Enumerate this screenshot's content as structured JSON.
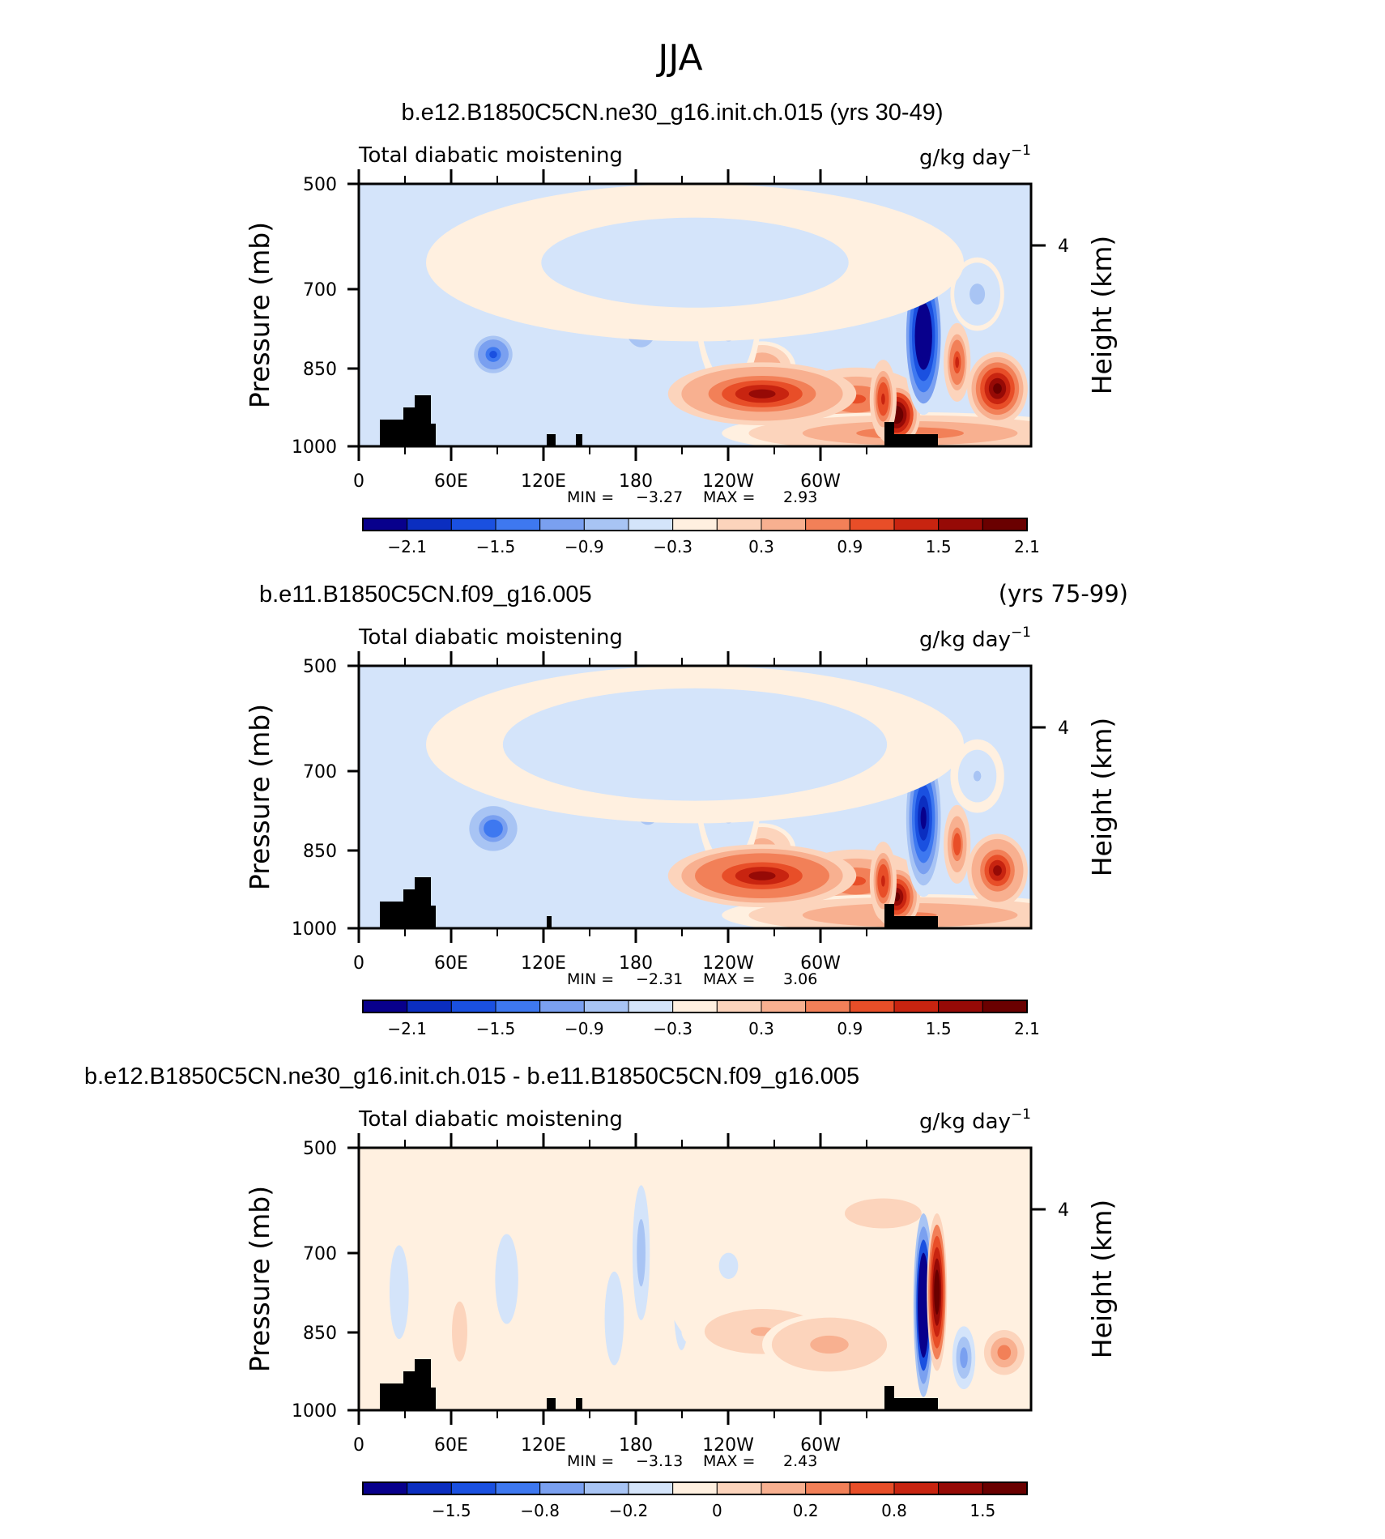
{
  "figure": {
    "main_title": "JJA"
  },
  "colors": {
    "palette": [
      "#08008c",
      "#0b2ec0",
      "#1a50e0",
      "#3e78f0",
      "#7aa0f0",
      "#a8c4f4",
      "#d4e4fa",
      "#fff0e0",
      "#fcd4bc",
      "#f8b090",
      "#f28058",
      "#e84e28",
      "#c82410",
      "#960a06",
      "#6a0000"
    ],
    "axis": "#000000",
    "land": "#000000"
  },
  "chart_data": [
    {
      "type": "heatmap",
      "panel_title": "b.e12.B1850C5CN.ne30_g16.init.ch.015 (yrs 30-49)",
      "panel_title_right": "",
      "left_label": "Total diabatic moistening",
      "units": "g/kg day",
      "units_exp": "−1",
      "ylabel": "Pressure (mb)",
      "y2label": "Height (km)",
      "y2_ticks": [
        "4"
      ],
      "yticks": [
        "500",
        "700",
        "850",
        "1000"
      ],
      "xticks": [
        "0",
        "60E",
        "120E",
        "180",
        "120W",
        "60W"
      ],
      "min_label": "MIN =",
      "min_value": "−3.27",
      "max_label": "MAX =",
      "max_value": "2.93",
      "colorbar_labels": [
        "−2.1",
        "−1.5",
        "−0.9",
        "−0.3",
        "0.3",
        "0.9",
        "1.5",
        "2.1"
      ],
      "blobs": [
        [
          0.74,
          0.82,
          0.1,
          0.12,
          1.4
        ],
        [
          0.6,
          0.7,
          0.05,
          0.1,
          1.0
        ],
        [
          0.82,
          0.95,
          0.28,
          0.08,
          1.2
        ],
        [
          0.2,
          0.65,
          0.04,
          0.1,
          -1.6
        ],
        [
          0.42,
          0.52,
          0.03,
          0.12,
          -2.0
        ],
        [
          0.55,
          0.45,
          0.05,
          0.35,
          -0.9
        ],
        [
          0.6,
          0.8,
          0.14,
          0.12,
          2.0
        ],
        [
          0.8,
          0.88,
          0.035,
          0.12,
          2.9
        ],
        [
          0.78,
          0.82,
          0.02,
          0.15,
          1.8
        ],
        [
          0.84,
          0.58,
          0.03,
          0.3,
          -3.2
        ],
        [
          0.89,
          0.68,
          0.02,
          0.15,
          1.6
        ],
        [
          0.95,
          0.78,
          0.045,
          0.14,
          2.4
        ],
        [
          0.92,
          0.42,
          0.04,
          0.14,
          -0.7
        ],
        [
          0.5,
          0.3,
          0.4,
          0.3,
          -0.4
        ]
      ]
    },
    {
      "type": "heatmap",
      "panel_title": "b.e11.B1850C5CN.f09_g16.005",
      "panel_title_right": "(yrs 75-99)",
      "left_label": "Total diabatic moistening",
      "units": "g/kg day",
      "units_exp": "−1",
      "ylabel": "Pressure (mb)",
      "y2label": "Height (km)",
      "y2_ticks": [
        "4"
      ],
      "yticks": [
        "500",
        "700",
        "850",
        "1000"
      ],
      "xticks": [
        "0",
        "60E",
        "120E",
        "180",
        "120W",
        "60W"
      ],
      "min_label": "MIN =",
      "min_value": "−2.31",
      "max_label": "MAX =",
      "max_value": "3.06",
      "colorbar_labels": [
        "−2.1",
        "−1.5",
        "−0.9",
        "−0.3",
        "0.3",
        "0.9",
        "1.5",
        "2.1"
      ],
      "blobs": [
        [
          0.74,
          0.82,
          0.1,
          0.12,
          1.3
        ],
        [
          0.6,
          0.7,
          0.05,
          0.1,
          0.9
        ],
        [
          0.82,
          0.95,
          0.28,
          0.08,
          1.0
        ],
        [
          0.2,
          0.62,
          0.05,
          0.12,
          -1.5
        ],
        [
          0.43,
          0.52,
          0.03,
          0.12,
          -1.6
        ],
        [
          0.55,
          0.45,
          0.05,
          0.35,
          -0.8
        ],
        [
          0.6,
          0.8,
          0.14,
          0.12,
          2.1
        ],
        [
          0.8,
          0.88,
          0.035,
          0.12,
          2.6
        ],
        [
          0.78,
          0.82,
          0.02,
          0.15,
          1.7
        ],
        [
          0.84,
          0.58,
          0.03,
          0.3,
          -2.3
        ],
        [
          0.89,
          0.68,
          0.02,
          0.15,
          1.5
        ],
        [
          0.95,
          0.78,
          0.045,
          0.14,
          2.0
        ],
        [
          0.92,
          0.42,
          0.04,
          0.14,
          -0.6
        ],
        [
          0.5,
          0.3,
          0.4,
          0.3,
          -0.5
        ]
      ]
    },
    {
      "type": "heatmap",
      "panel_title": "b.e12.B1850C5CN.ne30_g16.init.ch.015 - b.e11.B1850C5CN.f09_g16.005",
      "panel_title_right": "",
      "left_label": "Total diabatic moistening",
      "units": "g/kg day",
      "units_exp": "−1",
      "ylabel": "Pressure (mb)",
      "y2label": "Height (km)",
      "y2_ticks": [
        "4"
      ],
      "yticks": [
        "500",
        "700",
        "850",
        "1000"
      ],
      "xticks": [
        "0",
        "60E",
        "120E",
        "180",
        "120W",
        "60W"
      ],
      "min_label": "MIN =",
      "min_value": "−3.13",
      "max_label": "MAX =",
      "max_value": "2.43",
      "colorbar_labels": [
        "−1.5",
        "−0.8",
        "−0.2",
        "0",
        "0.2",
        "0.8",
        "1.5"
      ],
      "blobs": [
        [
          0.06,
          0.55,
          0.02,
          0.25,
          -0.4
        ],
        [
          0.15,
          0.7,
          0.02,
          0.2,
          0.3
        ],
        [
          0.22,
          0.5,
          0.03,
          0.3,
          -0.3
        ],
        [
          0.38,
          0.65,
          0.02,
          0.25,
          -0.4
        ],
        [
          0.42,
          0.4,
          0.015,
          0.3,
          -0.6
        ],
        [
          0.48,
          0.6,
          0.02,
          0.3,
          -0.3
        ],
        [
          0.55,
          0.45,
          0.1,
          0.35,
          -0.15
        ],
        [
          0.6,
          0.7,
          0.12,
          0.12,
          0.4
        ],
        [
          0.7,
          0.75,
          0.1,
          0.12,
          0.5
        ],
        [
          0.78,
          0.25,
          0.1,
          0.1,
          0.25
        ],
        [
          0.84,
          0.6,
          0.015,
          0.35,
          -3.1
        ],
        [
          0.86,
          0.55,
          0.015,
          0.3,
          2.4
        ],
        [
          0.9,
          0.8,
          0.02,
          0.14,
          -0.8
        ],
        [
          0.96,
          0.78,
          0.035,
          0.1,
          0.8
        ]
      ]
    }
  ]
}
